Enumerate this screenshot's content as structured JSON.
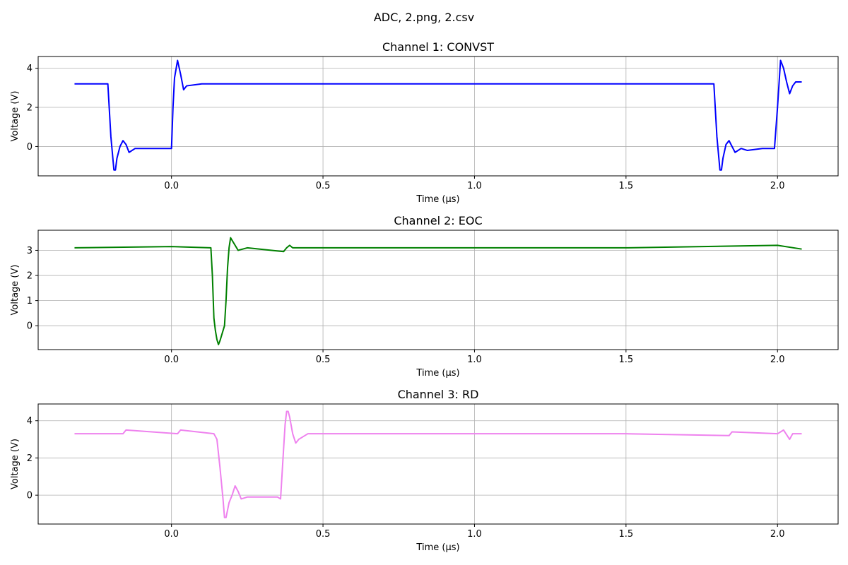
{
  "figure": {
    "suptitle": "ADC, 2.png, 2.csv"
  },
  "chart_data": [
    {
      "type": "line",
      "title": "Channel 1: CONVST",
      "xlabel": "Time (µs)",
      "ylabel": "Voltage (V)",
      "xlim": [
        -0.44,
        2.2
      ],
      "ylim": [
        -1.5,
        4.6
      ],
      "xticks": [
        0.0,
        0.5,
        1.0,
        1.5,
        2.0
      ],
      "xtick_labels": [
        "0.0",
        "0.5",
        "1.0",
        "1.5",
        "2.0"
      ],
      "yticks": [
        0,
        2,
        4
      ],
      "ytick_labels": [
        "0",
        "2",
        "4"
      ],
      "grid": true,
      "color": "#0000ff",
      "x": [
        -0.32,
        -0.21,
        -0.2,
        -0.19,
        -0.185,
        -0.18,
        -0.17,
        -0.16,
        -0.15,
        -0.14,
        -0.12,
        -0.1,
        -0.05,
        0.0,
        0.005,
        0.01,
        0.02,
        0.03,
        0.04,
        0.05,
        0.1,
        0.5,
        1.0,
        1.5,
        1.79,
        1.8,
        1.81,
        1.815,
        1.82,
        1.83,
        1.84,
        1.85,
        1.86,
        1.88,
        1.9,
        1.95,
        1.99,
        2.0,
        2.01,
        2.02,
        2.03,
        2.04,
        2.05,
        2.06,
        2.08
      ],
      "y": [
        3.2,
        3.2,
        0.5,
        -1.2,
        -1.2,
        -0.6,
        0.0,
        0.3,
        0.1,
        -0.3,
        -0.1,
        -0.1,
        -0.1,
        -0.1,
        2.0,
        3.5,
        4.4,
        3.7,
        2.9,
        3.1,
        3.2,
        3.2,
        3.2,
        3.2,
        3.2,
        0.5,
        -1.2,
        -1.2,
        -0.6,
        0.1,
        0.3,
        0.0,
        -0.3,
        -0.1,
        -0.2,
        -0.1,
        -0.1,
        2.0,
        4.4,
        4.0,
        3.3,
        2.7,
        3.1,
        3.3,
        3.3
      ]
    },
    {
      "type": "line",
      "title": "Channel 2: EOC",
      "xlabel": "Time (µs)",
      "ylabel": "Voltage (V)",
      "xlim": [
        -0.44,
        2.2
      ],
      "ylim": [
        -0.95,
        3.8
      ],
      "xticks": [
        0.0,
        0.5,
        1.0,
        1.5,
        2.0
      ],
      "xtick_labels": [
        "0.0",
        "0.5",
        "1.0",
        "1.5",
        "2.0"
      ],
      "yticks": [
        0,
        1,
        2,
        3
      ],
      "ytick_labels": [
        "0",
        "1",
        "2",
        "3"
      ],
      "grid": true,
      "color": "#008000",
      "x": [
        -0.32,
        0.0,
        0.13,
        0.135,
        0.14,
        0.145,
        0.15,
        0.155,
        0.16,
        0.17,
        0.175,
        0.18,
        0.185,
        0.19,
        0.195,
        0.2,
        0.21,
        0.22,
        0.25,
        0.37,
        0.38,
        0.39,
        0.4,
        0.5,
        1.0,
        1.5,
        2.0,
        2.08
      ],
      "y": [
        3.1,
        3.15,
        3.1,
        2.0,
        0.3,
        -0.2,
        -0.55,
        -0.75,
        -0.6,
        -0.2,
        0.0,
        1.0,
        2.3,
        3.1,
        3.5,
        3.4,
        3.2,
        3.0,
        3.1,
        2.95,
        3.1,
        3.2,
        3.1,
        3.1,
        3.1,
        3.1,
        3.2,
        3.05
      ]
    },
    {
      "type": "line",
      "title": "Channel 3: RD",
      "xlabel": "Time (µs)",
      "ylabel": "Voltage (V)",
      "xlim": [
        -0.44,
        2.2
      ],
      "ylim": [
        -1.55,
        4.9
      ],
      "xticks": [
        0.0,
        0.5,
        1.0,
        1.5,
        2.0
      ],
      "xtick_labels": [
        "0.0",
        "0.5",
        "1.0",
        "1.5",
        "2.0"
      ],
      "yticks": [
        0,
        2,
        4
      ],
      "ytick_labels": [
        "0",
        "2",
        "4"
      ],
      "grid": true,
      "color": "#ee82ee",
      "x": [
        -0.32,
        -0.16,
        -0.15,
        0.02,
        0.03,
        0.14,
        0.15,
        0.16,
        0.17,
        0.175,
        0.18,
        0.19,
        0.2,
        0.21,
        0.22,
        0.23,
        0.25,
        0.3,
        0.35,
        0.36,
        0.37,
        0.375,
        0.38,
        0.385,
        0.39,
        0.4,
        0.41,
        0.42,
        0.45,
        1.0,
        1.5,
        1.84,
        1.85,
        2.0,
        2.02,
        2.04,
        2.05,
        2.08
      ],
      "y": [
        3.3,
        3.3,
        3.5,
        3.3,
        3.5,
        3.3,
        3.0,
        1.5,
        -0.2,
        -1.2,
        -1.2,
        -0.4,
        0.0,
        0.5,
        0.2,
        -0.2,
        -0.1,
        -0.1,
        -0.1,
        -0.2,
        2.5,
        3.8,
        4.5,
        4.5,
        4.2,
        3.3,
        2.8,
        3.0,
        3.3,
        3.3,
        3.3,
        3.2,
        3.4,
        3.3,
        3.5,
        3.0,
        3.3,
        3.3
      ]
    }
  ]
}
